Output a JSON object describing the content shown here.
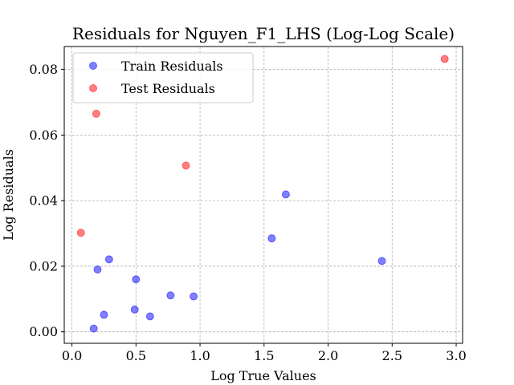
{
  "chart_data": {
    "type": "scatter",
    "title": "Residuals for Nguyen_F1_LHS (Log-Log Scale)",
    "xlabel": "Log True Values",
    "ylabel": "Log Residuals",
    "xlim": [
      -0.06,
      3.05
    ],
    "ylim": [
      -0.0035,
      0.087
    ],
    "xticks": [
      0.0,
      0.5,
      1.0,
      1.5,
      2.0,
      2.5,
      3.0
    ],
    "xtick_labels": [
      "0.0",
      "0.5",
      "1.0",
      "1.5",
      "2.0",
      "2.5",
      "3.0"
    ],
    "yticks": [
      0.0,
      0.02,
      0.04,
      0.06,
      0.08
    ],
    "ytick_labels": [
      "0.00",
      "0.02",
      "0.04",
      "0.06",
      "0.08"
    ],
    "grid": true,
    "legend_position": "upper-left",
    "series": [
      {
        "name": "Train Residuals",
        "color": "#0000ff",
        "points": [
          {
            "x": 0.17,
            "y": 0.001
          },
          {
            "x": 0.2,
            "y": 0.019
          },
          {
            "x": 0.25,
            "y": 0.0052
          },
          {
            "x": 0.29,
            "y": 0.0221
          },
          {
            "x": 0.49,
            "y": 0.0068
          },
          {
            "x": 0.5,
            "y": 0.016
          },
          {
            "x": 0.61,
            "y": 0.0047
          },
          {
            "x": 0.77,
            "y": 0.0111
          },
          {
            "x": 0.95,
            "y": 0.0108
          },
          {
            "x": 1.56,
            "y": 0.0285
          },
          {
            "x": 1.67,
            "y": 0.0419
          },
          {
            "x": 2.42,
            "y": 0.0216
          }
        ]
      },
      {
        "name": "Test Residuals",
        "color": "#ff0000",
        "points": [
          {
            "x": 0.07,
            "y": 0.0302
          },
          {
            "x": 0.19,
            "y": 0.0665
          },
          {
            "x": 0.89,
            "y": 0.0507
          },
          {
            "x": 2.91,
            "y": 0.0832
          }
        ]
      }
    ]
  }
}
